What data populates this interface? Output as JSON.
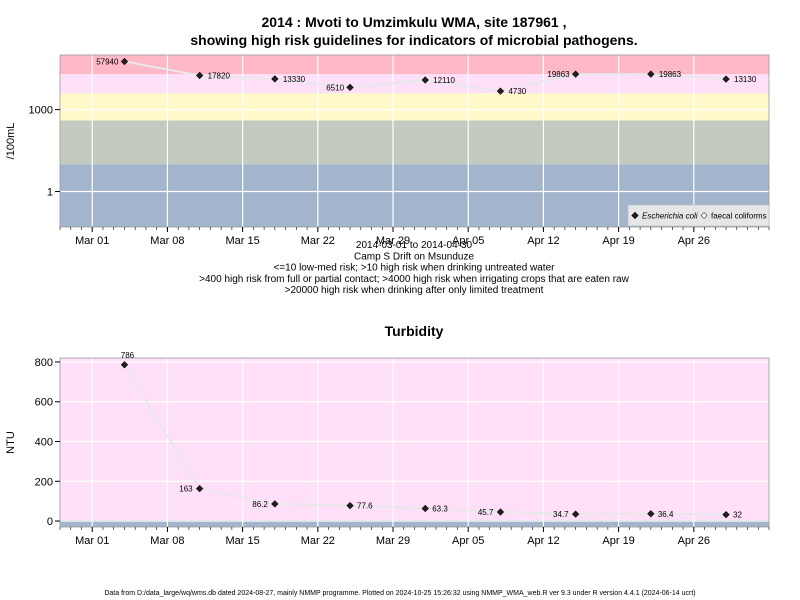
{
  "chart_data": [
    {
      "type": "line",
      "title_line1": "2014 : Mvoti to Umzimkulu WMA, site 187961 ,",
      "title_line2": "showing high risk guidelines for indicators of microbial pathogens.",
      "ylabel": "/100mL",
      "y_scale": "log",
      "y_tick_labels": [
        "1",
        "1000"
      ],
      "x_tick_labels": [
        "Mar 01",
        "Mar 08",
        "Mar 15",
        "Mar 22",
        "Mar 29",
        "Apr 05",
        "Apr 12",
        "Apr 19",
        "Apr 26"
      ],
      "x_tick_dates": [
        "2014-03-01",
        "2014-03-08",
        "2014-03-15",
        "2014-03-22",
        "2014-03-29",
        "2014-04-05",
        "2014-04-12",
        "2014-04-19",
        "2014-04-26"
      ],
      "grid": true,
      "legend_placement": "bottom-right",
      "series": [
        {
          "name": "Escherichia coli",
          "marker": "filled-diamond",
          "values": []
        },
        {
          "name": "faecal coliforms",
          "marker": "filled-diamond",
          "x": [
            "2014-03-04",
            "2014-03-11",
            "2014-03-18",
            "2014-03-25",
            "2014-04-01",
            "2014-04-08",
            "2014-04-15",
            "2014-04-22",
            "2014-04-29"
          ],
          "values": [
            57940,
            17820,
            13330,
            6510,
            12110,
            4730,
            19863,
            19863,
            13130
          ],
          "labels": [
            "57940",
            "17820",
            "13330",
            "6510",
            "12110",
            "4730",
            "19863",
            "19863",
            "13130"
          ]
        }
      ],
      "risk_bands": [
        {
          "from": 0.05,
          "to": 10,
          "color": "#a3b5cc"
        },
        {
          "from": 10,
          "to": 400,
          "color": "#c3cbc0"
        },
        {
          "from": 400,
          "to": 4000,
          "color": "#fff8c8"
        },
        {
          "from": 4000,
          "to": 20000,
          "color": "#ffe0f8"
        },
        {
          "from": 20000,
          "to": 100000,
          "color": "#ffb8c6"
        }
      ],
      "caption": [
        "2014-03-01 to 2014-04-30",
        "Camp S Drift on Msunduze",
        "<=10 low-med risk; >10 high risk when drinking untreated water",
        ">400 high risk from full or partial contact; >4000 high risk when irrigating crops that are eaten raw",
        ">20000 high risk when drinking after only limited treatment"
      ]
    },
    {
      "type": "line",
      "title": "Turbidity",
      "ylabel": "NTU",
      "ylim": [
        -30,
        820
      ],
      "y_ticks": [
        0,
        200,
        400,
        600,
        800
      ],
      "x_tick_labels": [
        "Mar 01",
        "Mar 08",
        "Mar 15",
        "Mar 22",
        "Mar 29",
        "Apr 05",
        "Apr 12",
        "Apr 19",
        "Apr 26"
      ],
      "x_tick_dates": [
        "2014-03-01",
        "2014-03-08",
        "2014-03-15",
        "2014-03-22",
        "2014-03-29",
        "2014-04-05",
        "2014-04-12",
        "2014-04-19",
        "2014-04-26"
      ],
      "grid": true,
      "series": [
        {
          "name": "",
          "x": [
            "2014-03-04",
            "2014-03-11",
            "2014-03-18",
            "2014-03-25",
            "2014-04-01",
            "2014-04-08",
            "2014-04-15",
            "2014-04-22",
            "2014-04-29"
          ],
          "values": [
            786,
            163,
            86.2,
            77.6,
            63.3,
            45.7,
            34.7,
            36.4,
            32
          ],
          "labels": [
            "786",
            "163",
            "86.2",
            "77.6",
            "63.3",
            "45.7",
            "34.7",
            "36.4",
            "32"
          ]
        }
      ],
      "risk_bands": [
        {
          "from": -30,
          "to": 5,
          "color": "#a3b5cc"
        },
        {
          "from": 5,
          "to": 820,
          "color": "#ffe0f8"
        }
      ]
    }
  ],
  "footer": "Data from D:/data_large/wq/wms.db dated 2024-08-27, mainly NMMP programme. Plotted on 2024-10-25 15:26:32 using NMMP_WMA_web.R ver 9.3 under R version 4.4.1 (2024-06-14 ucrt)"
}
